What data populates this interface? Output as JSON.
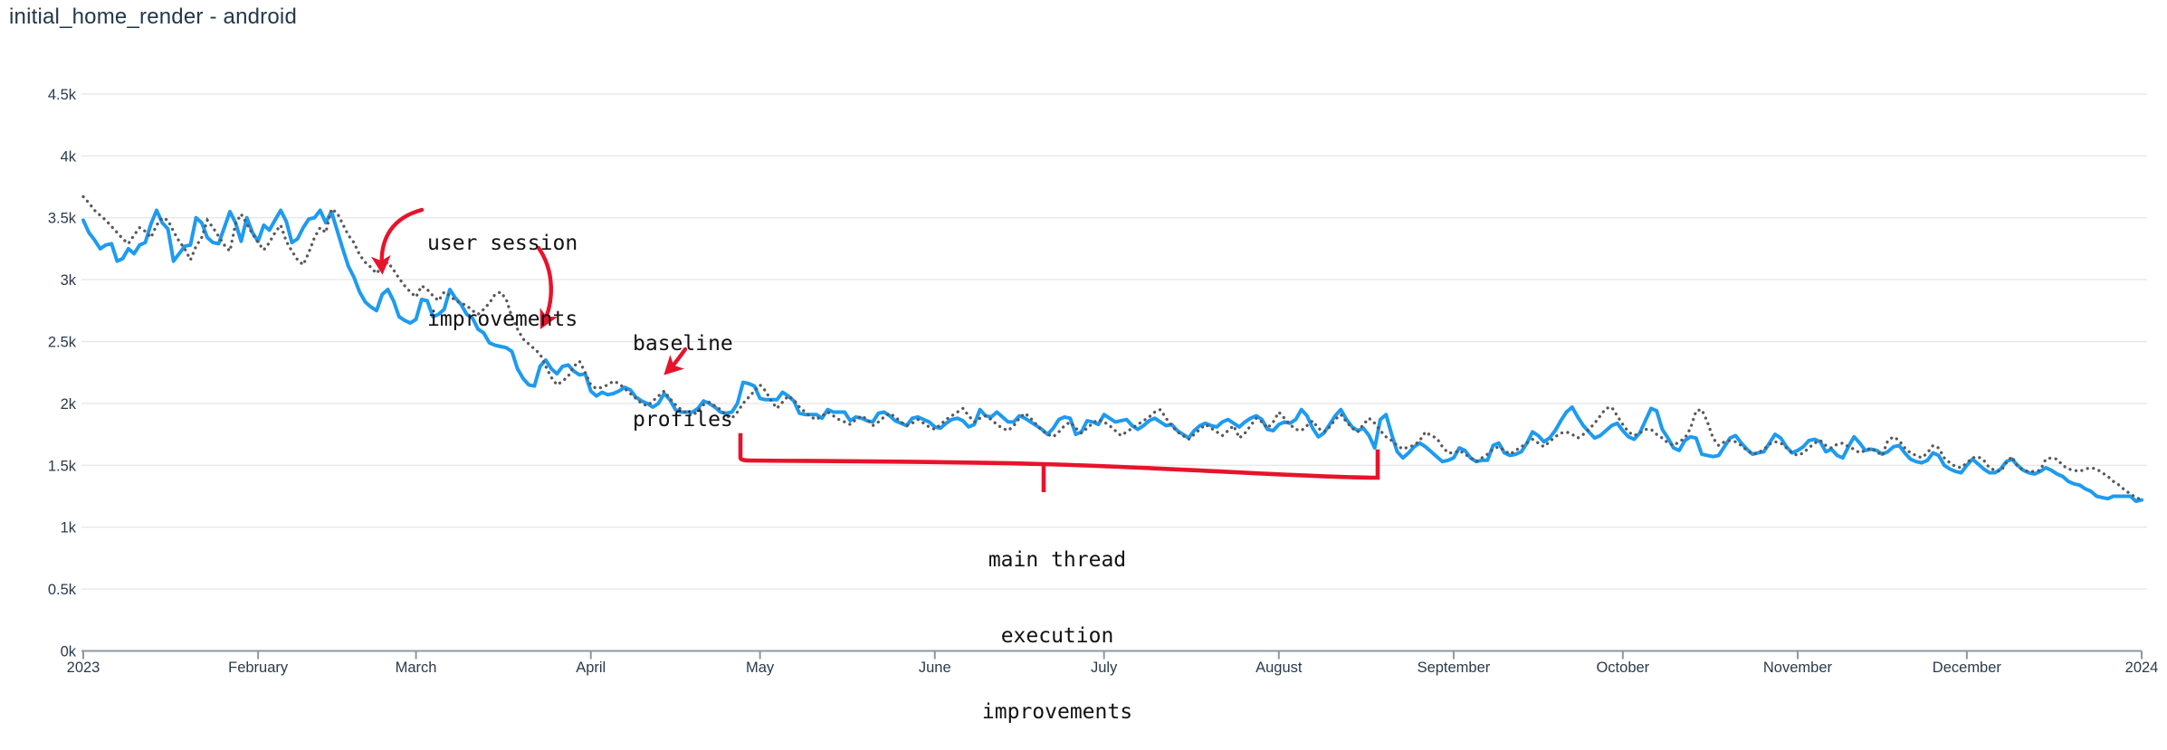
{
  "header": {
    "title": "initial_home_render - android"
  },
  "colors": {
    "line_solid": "#1e9bf0",
    "line_dotted": "#59595d",
    "annotation_red": "#e8132b",
    "grid": "#e8e8e8",
    "axis": "#8d97a3",
    "title_text": "#24384a",
    "axis_label_text": "#2b3a4a"
  },
  "annotations": {
    "user_session": {
      "lines": [
        "user session",
        "improvements"
      ]
    },
    "baseline_profiles": {
      "lines": [
        "baseline",
        "profiles"
      ]
    },
    "main_thread": {
      "lines": [
        "main thread",
        "execution",
        "improvements"
      ]
    }
  },
  "chart_data": {
    "type": "line",
    "title": "initial_home_render - android",
    "xlabel": "",
    "ylabel": "",
    "grid": true,
    "legend": "none",
    "y_axis": {
      "min": 0,
      "max": 4500,
      "ticks": [
        {
          "label": "0k",
          "value": 0
        },
        {
          "label": "0.5k",
          "value": 500
        },
        {
          "label": "1k",
          "value": 1000
        },
        {
          "label": "1.5k",
          "value": 1500
        },
        {
          "label": "2k",
          "value": 2000
        },
        {
          "label": "2.5k",
          "value": 2500
        },
        {
          "label": "3k",
          "value": 3000
        },
        {
          "label": "3.5k",
          "value": 3500
        },
        {
          "label": "4k",
          "value": 4000
        },
        {
          "label": "4.5k",
          "value": 4500
        }
      ]
    },
    "x_axis": {
      "range_days": [
        0,
        365
      ],
      "ticks": [
        {
          "label": "2023",
          "day": 0
        },
        {
          "label": "February",
          "day": 31
        },
        {
          "label": "March",
          "day": 59
        },
        {
          "label": "April",
          "day": 90
        },
        {
          "label": "May",
          "day": 120
        },
        {
          "label": "June",
          "day": 151
        },
        {
          "label": "July",
          "day": 181
        },
        {
          "label": "August",
          "day": 212
        },
        {
          "label": "September",
          "day": 243
        },
        {
          "label": "October",
          "day": 273
        },
        {
          "label": "November",
          "day": 304
        },
        {
          "label": "December",
          "day": 334
        },
        {
          "label": "2024",
          "day": 365
        }
      ]
    },
    "series": [
      {
        "name": "solid",
        "style": "solid",
        "color": "#1e9bf0",
        "start_day": 0,
        "step": 1,
        "values": [
          3480,
          3380,
          3320,
          3250,
          3280,
          3290,
          3150,
          3170,
          3250,
          3210,
          3280,
          3300,
          3450,
          3560,
          3460,
          3410,
          3150,
          3210,
          3270,
          3280,
          3500,
          3460,
          3340,
          3300,
          3290,
          3420,
          3550,
          3460,
          3310,
          3500,
          3380,
          3310,
          3440,
          3400,
          3480,
          3560,
          3470,
          3300,
          3330,
          3420,
          3490,
          3500,
          3560,
          3460,
          3550,
          3400,
          3250,
          3110,
          3020,
          2900,
          2820,
          2780,
          2750,
          2880,
          2920,
          2830,
          2700,
          2670,
          2650,
          2680,
          2840,
          2830,
          2700,
          2720,
          2760,
          2920,
          2850,
          2800,
          2720,
          2690,
          2600,
          2570,
          2490,
          2470,
          2460,
          2450,
          2420,
          2280,
          2200,
          2150,
          2140,
          2300,
          2350,
          2280,
          2240,
          2300,
          2310,
          2260,
          2230,
          2240,
          2100,
          2060,
          2090,
          2070,
          2080,
          2100,
          2130,
          2110,
          2050,
          2020,
          2000,
          1970,
          2000,
          2080,
          2030,
          1950,
          1930,
          1930,
          1930,
          1960,
          2020,
          2000,
          1970,
          1930,
          1920,
          1930,
          2000,
          2170,
          2160,
          2140,
          2040,
          2030,
          2030,
          2030,
          2090,
          2060,
          2020,
          1920,
          1910,
          1910,
          1910,
          1880,
          1950,
          1930,
          1930,
          1930,
          1860,
          1890,
          1880,
          1860,
          1850,
          1920,
          1930,
          1900,
          1860,
          1840,
          1820,
          1880,
          1890,
          1870,
          1850,
          1810,
          1800,
          1840,
          1870,
          1880,
          1860,
          1810,
          1830,
          1950,
          1900,
          1890,
          1930,
          1890,
          1850,
          1850,
          1900,
          1880,
          1850,
          1820,
          1790,
          1750,
          1800,
          1870,
          1890,
          1880,
          1750,
          1770,
          1860,
          1850,
          1830,
          1910,
          1880,
          1850,
          1860,
          1870,
          1820,
          1790,
          1820,
          1860,
          1880,
          1850,
          1820,
          1830,
          1780,
          1750,
          1720,
          1780,
          1820,
          1840,
          1820,
          1810,
          1850,
          1870,
          1840,
          1810,
          1850,
          1880,
          1900,
          1870,
          1790,
          1780,
          1830,
          1850,
          1840,
          1870,
          1950,
          1900,
          1800,
          1730,
          1760,
          1830,
          1900,
          1950,
          1870,
          1810,
          1780,
          1800,
          1740,
          1640,
          1870,
          1910,
          1750,
          1610,
          1560,
          1600,
          1650,
          1680,
          1650,
          1610,
          1570,
          1530,
          1540,
          1560,
          1640,
          1620,
          1560,
          1530,
          1540,
          1540,
          1660,
          1680,
          1600,
          1580,
          1590,
          1610,
          1680,
          1770,
          1740,
          1690,
          1720,
          1780,
          1860,
          1930,
          1970,
          1890,
          1820,
          1770,
          1720,
          1740,
          1780,
          1820,
          1840,
          1780,
          1730,
          1710,
          1760,
          1860,
          1960,
          1940,
          1790,
          1720,
          1640,
          1620,
          1700,
          1730,
          1720,
          1590,
          1580,
          1570,
          1580,
          1650,
          1720,
          1740,
          1680,
          1630,
          1590,
          1600,
          1610,
          1680,
          1750,
          1720,
          1650,
          1600,
          1620,
          1650,
          1700,
          1710,
          1690,
          1610,
          1630,
          1580,
          1560,
          1650,
          1730,
          1680,
          1620,
          1630,
          1620,
          1590,
          1610,
          1650,
          1660,
          1600,
          1550,
          1530,
          1520,
          1540,
          1600,
          1580,
          1500,
          1470,
          1450,
          1440,
          1500,
          1550,
          1510,
          1470,
          1440,
          1440,
          1470,
          1530,
          1550,
          1500,
          1460,
          1440,
          1430,
          1450,
          1480,
          1460,
          1430,
          1410,
          1370,
          1350,
          1340,
          1310,
          1290,
          1250,
          1240,
          1230,
          1250,
          1250,
          1250,
          1250,
          1210,
          1220
        ]
      },
      {
        "name": "dotted",
        "style": "dotted",
        "color": "#59595d",
        "start_day": 0,
        "step": 1,
        "values": [
          3670,
          3620,
          3560,
          3520,
          3480,
          3430,
          3380,
          3330,
          3290,
          3360,
          3420,
          3390,
          3340,
          3440,
          3500,
          3480,
          3390,
          3310,
          3250,
          3160,
          3270,
          3340,
          3480,
          3420,
          3350,
          3280,
          3230,
          3450,
          3530,
          3450,
          3370,
          3300,
          3240,
          3300,
          3380,
          3440,
          3310,
          3230,
          3160,
          3120,
          3220,
          3340,
          3420,
          3380,
          3570,
          3540,
          3450,
          3360,
          3300,
          3200,
          3140,
          3100,
          3050,
          3110,
          3140,
          3080,
          3010,
          2950,
          2900,
          2860,
          2950,
          2920,
          2870,
          2830,
          2900,
          2870,
          2830,
          2810,
          2790,
          2750,
          2720,
          2760,
          2810,
          2880,
          2900,
          2840,
          2700,
          2600,
          2520,
          2480,
          2440,
          2400,
          2300,
          2210,
          2150,
          2180,
          2220,
          2300,
          2340,
          2250,
          2150,
          2120,
          2130,
          2150,
          2180,
          2160,
          2120,
          2080,
          2040,
          2000,
          1980,
          2020,
          2060,
          2100,
          2040,
          1990,
          1950,
          1920,
          1900,
          1940,
          1990,
          2010,
          1980,
          1950,
          1900,
          1880,
          1930,
          2000,
          2050,
          2100,
          2150,
          2100,
          2020,
          1960,
          2010,
          2060,
          2030,
          1970,
          1930,
          1890,
          1870,
          1900,
          1930,
          1900,
          1870,
          1850,
          1830,
          1870,
          1900,
          1870,
          1820,
          1850,
          1890,
          1920,
          1890,
          1850,
          1820,
          1840,
          1870,
          1840,
          1810,
          1790,
          1830,
          1870,
          1900,
          1930,
          1960,
          1900,
          1850,
          1880,
          1900,
          1870,
          1830,
          1800,
          1780,
          1820,
          1880,
          1920,
          1880,
          1830,
          1780,
          1750,
          1730,
          1770,
          1820,
          1850,
          1800,
          1760,
          1800,
          1840,
          1870,
          1850,
          1820,
          1780,
          1740,
          1770,
          1800,
          1830,
          1860,
          1890,
          1930,
          1950,
          1880,
          1820,
          1770,
          1740,
          1710,
          1750,
          1790,
          1830,
          1800,
          1770,
          1740,
          1780,
          1820,
          1720,
          1760,
          1820,
          1880,
          1850,
          1800,
          1850,
          1930,
          1880,
          1830,
          1790,
          1780,
          1820,
          1860,
          1800,
          1770,
          1810,
          1870,
          1910,
          1850,
          1800,
          1770,
          1830,
          1880,
          1840,
          1780,
          1730,
          1700,
          1660,
          1630,
          1650,
          1660,
          1700,
          1770,
          1740,
          1720,
          1650,
          1600,
          1600,
          1620,
          1590,
          1560,
          1530,
          1560,
          1590,
          1630,
          1650,
          1620,
          1590,
          1620,
          1650,
          1680,
          1710,
          1680,
          1650,
          1690,
          1730,
          1760,
          1770,
          1750,
          1720,
          1750,
          1790,
          1840,
          1900,
          1960,
          1970,
          1900,
          1830,
          1770,
          1740,
          1760,
          1790,
          1790,
          1750,
          1720,
          1680,
          1660,
          1690,
          1720,
          1800,
          1940,
          1950,
          1850,
          1720,
          1660,
          1690,
          1700,
          1690,
          1660,
          1620,
          1590,
          1600,
          1630,
          1670,
          1690,
          1680,
          1640,
          1600,
          1580,
          1600,
          1640,
          1680,
          1700,
          1660,
          1640,
          1670,
          1680,
          1650,
          1630,
          1600,
          1620,
          1640,
          1610,
          1580,
          1700,
          1730,
          1700,
          1640,
          1600,
          1580,
          1560,
          1600,
          1660,
          1640,
          1560,
          1520,
          1490,
          1480,
          1520,
          1560,
          1570,
          1540,
          1480,
          1460,
          1450,
          1520,
          1570,
          1490,
          1460,
          1450,
          1450,
          1460,
          1550,
          1560,
          1550,
          1500,
          1470,
          1460,
          1450,
          1470,
          1480,
          1470,
          1440,
          1410,
          1370,
          1340,
          1300,
          1270,
          1240,
          1220
        ]
      }
    ]
  }
}
